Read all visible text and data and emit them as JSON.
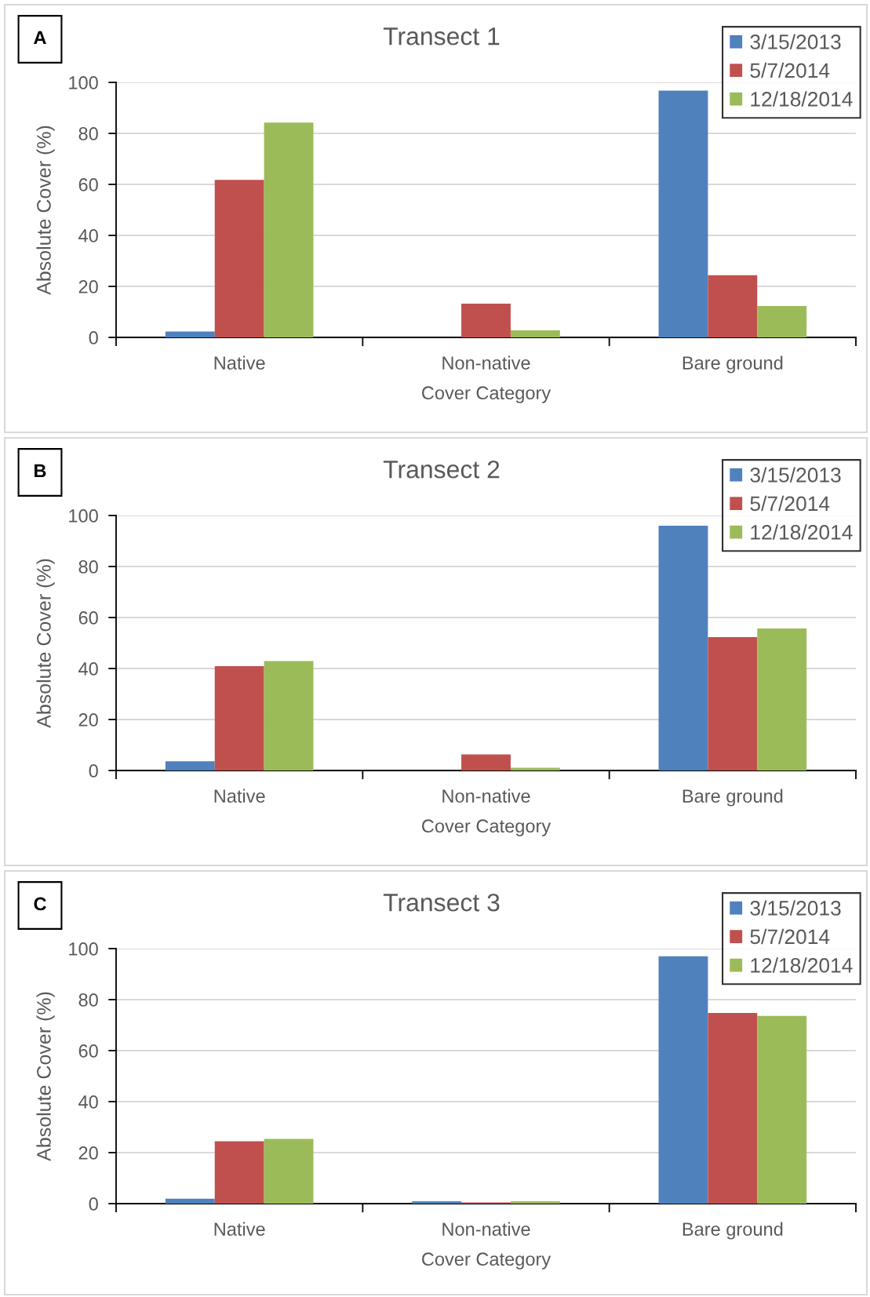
{
  "chart_data": [
    {
      "type": "bar",
      "title": "Transect 1",
      "xlabel": "Cover Category",
      "ylabel": "Absolute Cover (%)",
      "annotations": [
        "A"
      ],
      "categories": [
        "Native",
        "Non-native",
        "Bare ground"
      ],
      "series": [
        {
          "name": "3/15/2013",
          "color": "#4f81bd",
          "values": [
            2.3,
            0,
            96.8
          ]
        },
        {
          "name": "5/7/2014",
          "color": "#c0504d",
          "values": [
            61.8,
            13.2,
            24.4
          ]
        },
        {
          "name": "12/18/2014",
          "color": "#9bbb59",
          "values": [
            84.2,
            2.8,
            12.3
          ]
        }
      ],
      "ylim": [
        0,
        100
      ],
      "yticks": [
        0,
        20,
        40,
        60,
        80,
        100
      ],
      "grid": "y",
      "legend": "top right"
    },
    {
      "type": "bar",
      "title": "Transect 2",
      "xlabel": "Cover Category",
      "ylabel": "Absolute Cover (%)",
      "annotations": [
        "B"
      ],
      "categories": [
        "Native",
        "Non-native",
        "Bare ground"
      ],
      "series": [
        {
          "name": "3/15/2013",
          "color": "#4f81bd",
          "values": [
            3.6,
            0,
            96.0
          ]
        },
        {
          "name": "5/7/2014",
          "color": "#c0504d",
          "values": [
            40.9,
            6.3,
            52.3
          ]
        },
        {
          "name": "12/18/2014",
          "color": "#9bbb59",
          "values": [
            42.9,
            1.1,
            55.7
          ]
        }
      ],
      "ylim": [
        0,
        100
      ],
      "yticks": [
        0,
        20,
        40,
        60,
        80,
        100
      ],
      "grid": "y",
      "legend": "top right"
    },
    {
      "type": "bar",
      "title": "Transect 3",
      "xlabel": "Cover Category",
      "ylabel": "Absolute Cover (%)",
      "annotations": [
        "C"
      ],
      "categories": [
        "Native",
        "Non-native",
        "Bare ground"
      ],
      "series": [
        {
          "name": "3/15/2013",
          "color": "#4f81bd",
          "values": [
            1.9,
            0.9,
            97.0
          ]
        },
        {
          "name": "5/7/2014",
          "color": "#c0504d",
          "values": [
            24.5,
            0.5,
            74.8
          ]
        },
        {
          "name": "12/18/2014",
          "color": "#9bbb59",
          "values": [
            25.4,
            0.9,
            73.6
          ]
        }
      ],
      "ylim": [
        0,
        100
      ],
      "yticks": [
        0,
        20,
        40,
        60,
        80,
        100
      ],
      "grid": "y",
      "legend": "top right"
    }
  ]
}
